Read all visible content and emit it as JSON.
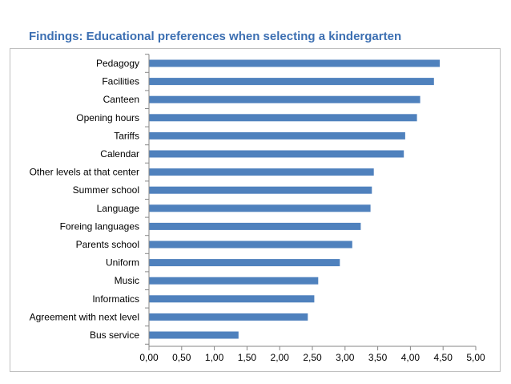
{
  "page": {
    "title": "Findings: Educational preferences when selecting a kindergarten"
  },
  "chart_data": {
    "type": "bar",
    "orientation": "horizontal",
    "categories": [
      "Pedagogy",
      "Facilities",
      "Canteen",
      "Opening hours",
      "Tariffs",
      "Calendar",
      "Other levels at that center",
      "Summer school",
      "Language",
      "Foreing languages",
      "Parents school",
      "Uniform",
      "Music",
      "Informatics",
      "Agreement with next level",
      "Bus service"
    ],
    "values": [
      4.45,
      4.36,
      4.15,
      4.1,
      3.92,
      3.9,
      3.44,
      3.41,
      3.39,
      3.24,
      3.11,
      2.92,
      2.59,
      2.53,
      2.43,
      1.37
    ],
    "xlim": [
      0,
      5
    ],
    "x_ticks": [
      "0,00",
      "0,50",
      "1,00",
      "1,50",
      "2,00",
      "2,50",
      "3,00",
      "3,50",
      "4,00",
      "4,50",
      "5,00"
    ],
    "grid": false,
    "legend": "none",
    "bar_color": "#4f81bd"
  }
}
